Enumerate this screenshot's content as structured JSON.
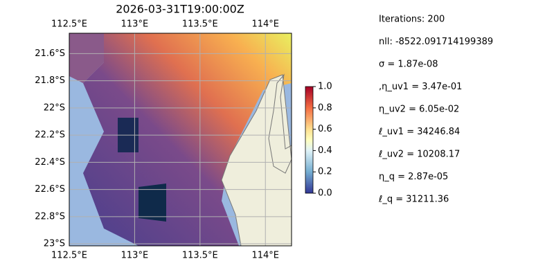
{
  "map": {
    "title": "2026-03-31T19:00:00Z",
    "xlim": [
      112.5,
      114.2
    ],
    "ylim": [
      -23.015,
      -21.45
    ],
    "lon_ticks": [
      {
        "value": 112.5,
        "label": "112.5°E"
      },
      {
        "value": 113,
        "label": "113°E"
      },
      {
        "value": 113.5,
        "label": "113.5°E"
      },
      {
        "value": 114,
        "label": "114°E"
      }
    ],
    "lat_ticks": [
      {
        "value": -21.6,
        "label": "21.6°S"
      },
      {
        "value": -21.8,
        "label": "21.8°S"
      },
      {
        "value": -22,
        "label": "22°S"
      },
      {
        "value": -22.2,
        "label": "22.2°S"
      },
      {
        "value": -22.4,
        "label": "22.4°S"
      },
      {
        "value": -22.6,
        "label": "22.6°S"
      },
      {
        "value": -22.8,
        "label": "22.8°S"
      },
      {
        "value": -23,
        "label": "23°S"
      }
    ],
    "grid": true,
    "colorbar": {
      "lim": [
        0,
        1
      ],
      "ticks": [
        {
          "value": 0,
          "label": "0.0"
        },
        {
          "value": 0.2,
          "label": "0.2"
        },
        {
          "value": 0.4,
          "label": "0.4"
        },
        {
          "value": 0.6,
          "label": "0.6"
        },
        {
          "value": 0.8,
          "label": "0.8"
        },
        {
          "value": 1,
          "label": "1.0"
        }
      ]
    }
  },
  "annotations": [
    "Iterations: 200",
    "nll: -8522.091714199389",
    "σ = 1.87e-08",
    ",η_uv1 = 3.47e-01",
    "η_uv2 = 6.05e-02",
    "ℓ_uv1 = 34246.84",
    "ℓ_uv2 = 10208.17",
    "η_q = 2.87e-05",
    "ℓ_q = 31211.36"
  ]
}
